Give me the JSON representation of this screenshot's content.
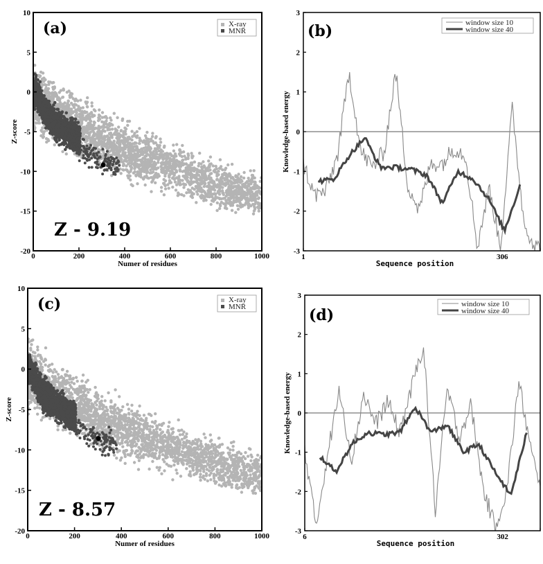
{
  "chart_data": [
    {
      "panel": "(a)",
      "type": "scatter",
      "xlabel": "Numer of   residues",
      "ylabel": "Z-score",
      "xlim": [
        0,
        1000
      ],
      "ylim": [
        -20,
        10
      ],
      "xticks": [
        "0",
        "200",
        "400",
        "600",
        "800",
        "1000"
      ],
      "yticks": [
        "10",
        "5",
        "0",
        "-5",
        "-10",
        "-15",
        "-20"
      ],
      "legend": [
        "X-ray",
        "MNR"
      ],
      "legend_position": "top-right",
      "annotation": "Z - 9.19",
      "highlight_point": {
        "x": 306,
        "y": -9.19
      },
      "series": [
        {
          "name": "X-ray",
          "color": "#b4b4b4",
          "trend_points": [
            [
              10,
              -1
            ],
            [
              100,
              -3
            ],
            [
              200,
              -4.5
            ],
            [
              300,
              -6
            ],
            [
              400,
              -7.5
            ],
            [
              500,
              -8.5
            ],
            [
              600,
              -9.5
            ],
            [
              700,
              -10.5
            ],
            [
              800,
              -11.5
            ],
            [
              900,
              -12.5
            ],
            [
              1000,
              -13
            ]
          ]
        },
        {
          "name": "MNR",
          "color": "#4a4a4a",
          "trend_points": [
            [
              10,
              0
            ],
            [
              50,
              -2.5
            ],
            [
              100,
              -4
            ],
            [
              150,
              -5
            ],
            [
              200,
              -6
            ],
            [
              250,
              -7
            ],
            [
              300,
              -8
            ]
          ]
        }
      ]
    },
    {
      "panel": "(b)",
      "type": "line",
      "xlabel": "Sequence position",
      "ylabel": "Knowledge-based energy",
      "xticks": [
        "1",
        "306"
      ],
      "yticks": [
        "3",
        "2",
        "1",
        "0",
        "-1",
        "-2",
        "-3"
      ],
      "ylim": [
        -3,
        3
      ],
      "legend_position": "top-right",
      "series": [
        {
          "name": "window size  10",
          "color": "#888888",
          "x": [
            1,
            15,
            30,
            45,
            60,
            75,
            90,
            105,
            120,
            135,
            150,
            165,
            180,
            195,
            210,
            225,
            240,
            255,
            270,
            285,
            300,
            306
          ],
          "y": [
            -0.8,
            -1.6,
            -1.5,
            -0.6,
            1.5,
            -0.5,
            -0.9,
            -0.5,
            1.5,
            -1.3,
            -2.0,
            -0.8,
            -0.8,
            -0.4,
            -0.6,
            -2.9,
            -1.4,
            -2.9,
            0.6,
            -2.3,
            -2.9,
            -2.9
          ]
        },
        {
          "name": "window size  40",
          "color": "#444444",
          "x": [
            20,
            40,
            60,
            80,
            100,
            120,
            140,
            160,
            180,
            200,
            220,
            240,
            260,
            280
          ],
          "y": [
            -1.25,
            -1.2,
            -0.6,
            -0.15,
            -0.9,
            -0.9,
            -0.95,
            -1.1,
            -1.8,
            -1.0,
            -1.2,
            -1.7,
            -2.5,
            -1.35
          ]
        }
      ]
    },
    {
      "panel": "(c)",
      "type": "scatter",
      "xlabel": "Numer of residues",
      "ylabel": "Z-score",
      "xlim": [
        0,
        1000
      ],
      "ylim": [
        -20,
        10
      ],
      "xticks": [
        "0",
        "200",
        "400",
        "600",
        "800",
        "1000"
      ],
      "yticks": [
        "10",
        "5",
        "0",
        "-5",
        "-10",
        "-15",
        "-20"
      ],
      "legend": [
        "X-ray",
        "MNR"
      ],
      "legend_position": "top-right",
      "annotation": "Z - 8.57",
      "highlight_point": {
        "x": 302,
        "y": -8.57
      },
      "series": [
        {
          "name": "X-ray",
          "color": "#b4b4b4",
          "trend_points": [
            [
              10,
              -1
            ],
            [
              100,
              -3
            ],
            [
              200,
              -4.5
            ],
            [
              300,
              -6
            ],
            [
              400,
              -7.5
            ],
            [
              500,
              -8.5
            ],
            [
              600,
              -9.5
            ],
            [
              700,
              -10.5
            ],
            [
              800,
              -11.5
            ],
            [
              900,
              -12.5
            ],
            [
              1000,
              -13
            ]
          ]
        },
        {
          "name": "MNR",
          "color": "#4a4a4a",
          "trend_points": [
            [
              10,
              0
            ],
            [
              50,
              -2.5
            ],
            [
              100,
              -4
            ],
            [
              150,
              -5
            ],
            [
              200,
              -6
            ],
            [
              250,
              -7
            ],
            [
              300,
              -8
            ]
          ]
        }
      ]
    },
    {
      "panel": "(d)",
      "type": "line",
      "xlabel": "Sequence position",
      "ylabel": "Knowledge-based energy",
      "xticks": [
        "6",
        "302"
      ],
      "yticks": [
        "3",
        "2",
        "1",
        "0",
        "-1",
        "-2",
        "-3"
      ],
      "ylim": [
        -3,
        3
      ],
      "legend_position": "top-right",
      "series": [
        {
          "name": "window size  10",
          "color": "#888888",
          "x": [
            6,
            20,
            35,
            50,
            65,
            80,
            95,
            110,
            125,
            140,
            155,
            170,
            185,
            200,
            215,
            230,
            245,
            260,
            275,
            290,
            302
          ],
          "y": [
            -0.9,
            -2.9,
            -1.0,
            0.6,
            -1.2,
            0.5,
            -0.3,
            0.3,
            -0.5,
            0.6,
            1.75,
            -2.5,
            0.6,
            -0.6,
            0.2,
            -1.9,
            -2.9,
            -2.0,
            0.8,
            -0.9,
            -2.0
          ]
        },
        {
          "name": "window size  40",
          "color": "#444444",
          "x": [
            25,
            45,
            65,
            85,
            105,
            125,
            145,
            165,
            185,
            205,
            225,
            245,
            265,
            285
          ],
          "y": [
            -1.1,
            -1.5,
            -0.8,
            -0.5,
            -0.55,
            -0.5,
            0.15,
            -0.5,
            -0.3,
            -1.0,
            -0.8,
            -1.5,
            -2.1,
            -0.5
          ]
        }
      ]
    }
  ]
}
